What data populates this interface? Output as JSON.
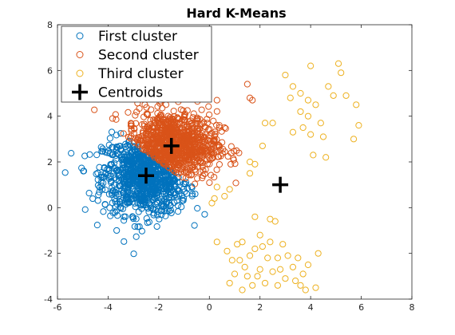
{
  "chart_data": {
    "type": "scatter",
    "title": "Hard K-Means",
    "xlim": [
      -6,
      8
    ],
    "ylim": [
      -4,
      8
    ],
    "x_ticks": [
      -6,
      -4,
      -2,
      0,
      2,
      4,
      6,
      8
    ],
    "y_ticks": [
      -4,
      -2,
      0,
      2,
      4,
      6,
      8
    ],
    "x_tick_labels": [
      "-6",
      "-4",
      "-2",
      "0",
      "2",
      "4",
      "6",
      "8"
    ],
    "y_tick_labels": [
      "-4",
      "-2",
      "0",
      "2",
      "4",
      "6",
      "8"
    ],
    "grid": false,
    "legend_position": "top-left",
    "legend": [
      {
        "label": "First cluster",
        "color": "#0072BD",
        "marker": "circle"
      },
      {
        "label": "Second cluster",
        "color": "#D95319",
        "marker": "circle"
      },
      {
        "label": "Third cluster",
        "color": "#EDB120",
        "marker": "circle"
      },
      {
        "label": "Centroids",
        "color": "#000000",
        "marker": "plus"
      }
    ],
    "series": [
      {
        "name": "First cluster",
        "color": "#0072BD",
        "generator": {
          "type": "gaussian",
          "mean": [
            -2.5,
            1.4
          ],
          "std": [
            0.85,
            0.85
          ],
          "count": 900,
          "region": "below_line",
          "line": {
            "x0": -2.0,
            "y0": 2.05,
            "slope": -0.8
          }
        }
      },
      {
        "name": "Second cluster",
        "color": "#D95319",
        "generator": {
          "type": "gaussian",
          "mean": [
            -1.5,
            2.7
          ],
          "std": [
            0.9,
            0.75
          ],
          "count": 900,
          "region": "above_line",
          "line": {
            "x0": -2.0,
            "y0": 2.05,
            "slope": -0.8
          }
        },
        "outliers": [
          [
            1.5,
            5.4
          ],
          [
            1.6,
            4.8
          ],
          [
            1.7,
            4.7
          ],
          [
            0.3,
            4.7
          ],
          [
            0.6,
            3.5
          ]
        ]
      },
      {
        "name": "Third cluster",
        "color": "#EDB120",
        "points": [
          [
            3.0,
            5.8
          ],
          [
            4.0,
            6.2
          ],
          [
            5.1,
            6.3
          ],
          [
            5.2,
            5.9
          ],
          [
            4.7,
            5.3
          ],
          [
            4.9,
            4.9
          ],
          [
            5.4,
            4.9
          ],
          [
            3.3,
            5.3
          ],
          [
            3.6,
            5.0
          ],
          [
            3.9,
            4.7
          ],
          [
            4.2,
            4.5
          ],
          [
            3.6,
            4.2
          ],
          [
            3.9,
            4.0
          ],
          [
            4.4,
            3.7
          ],
          [
            3.7,
            3.5
          ],
          [
            4.0,
            3.2
          ],
          [
            4.5,
            3.1
          ],
          [
            3.3,
            3.3
          ],
          [
            5.8,
            4.5
          ],
          [
            5.9,
            3.6
          ],
          [
            5.7,
            3.0
          ],
          [
            4.6,
            2.2
          ],
          [
            4.1,
            2.3
          ],
          [
            2.1,
            2.7
          ],
          [
            2.5,
            3.7
          ],
          [
            1.6,
            2.0
          ],
          [
            1.8,
            1.9
          ],
          [
            1.6,
            1.5
          ],
          [
            0.8,
            0.8
          ],
          [
            0.3,
            0.9
          ],
          [
            0.6,
            0.5
          ],
          [
            0.2,
            0.4
          ],
          [
            0.1,
            0.2
          ],
          [
            2.2,
            3.7
          ],
          [
            3.2,
            4.8
          ],
          [
            1.1,
            -1.6
          ],
          [
            1.3,
            -1.5
          ],
          [
            1.2,
            -2.3
          ],
          [
            1.4,
            -2.6
          ],
          [
            1.6,
            -2.1
          ],
          [
            1.8,
            -1.8
          ],
          [
            2.0,
            -1.2
          ],
          [
            2.4,
            -0.5
          ],
          [
            2.6,
            -0.6
          ],
          [
            1.8,
            -0.4
          ],
          [
            2.1,
            -1.7
          ],
          [
            2.3,
            -2.2
          ],
          [
            2.5,
            -2.8
          ],
          [
            2.7,
            -2.2
          ],
          [
            2.9,
            -1.6
          ],
          [
            3.1,
            -2.1
          ],
          [
            3.3,
            -2.6
          ],
          [
            3.5,
            -2.2
          ],
          [
            3.7,
            -2.9
          ],
          [
            3.9,
            -2.5
          ],
          [
            3.6,
            -3.4
          ],
          [
            3.0,
            -3.1
          ],
          [
            2.7,
            -3.4
          ],
          [
            2.2,
            -3.3
          ],
          [
            1.9,
            -3.0
          ],
          [
            1.5,
            -3.0
          ],
          [
            1.3,
            -3.6
          ],
          [
            0.8,
            -3.3
          ],
          [
            0.9,
            -2.3
          ],
          [
            0.7,
            -1.9
          ],
          [
            1.0,
            -2.9
          ],
          [
            2.8,
            -2.7
          ],
          [
            3.4,
            -3.2
          ],
          [
            4.2,
            -3.5
          ],
          [
            4.3,
            -2.0
          ],
          [
            3.8,
            -3.6
          ],
          [
            2.0,
            -2.7
          ],
          [
            1.7,
            -3.4
          ],
          [
            0.3,
            -1.5
          ],
          [
            2.4,
            -1.5
          ]
        ]
      },
      {
        "name": "Centroids",
        "color": "#000000",
        "marker": "plus",
        "points": [
          [
            -1.5,
            2.7
          ],
          [
            -2.5,
            1.4
          ],
          [
            2.8,
            1.0
          ]
        ]
      }
    ]
  }
}
